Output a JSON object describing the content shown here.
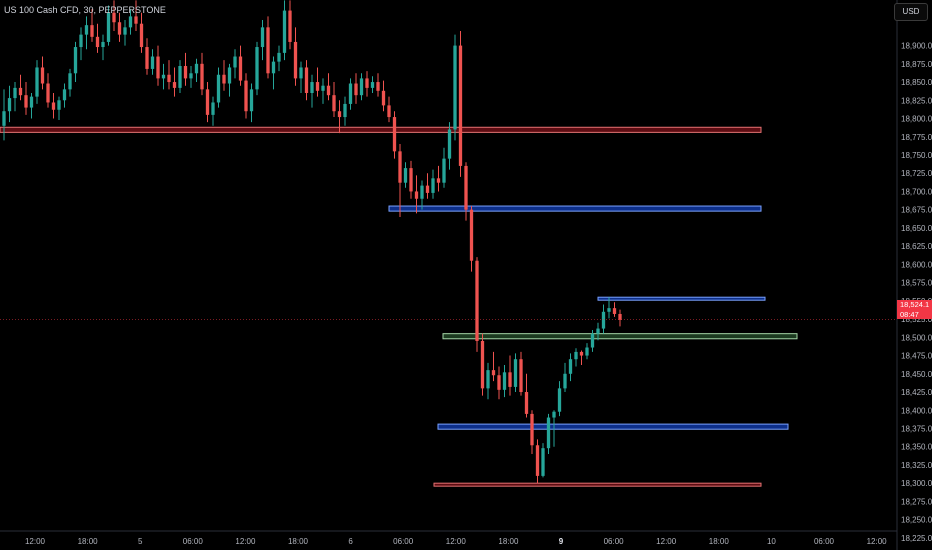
{
  "header": {
    "symbol_line": "US 100 Cash CFD, 30, PEPPERSTONE",
    "currency_button": "USD"
  },
  "last_price": {
    "value": "18,524.1",
    "countdown": "08:47"
  },
  "colors": {
    "up": "#26a69a",
    "down": "#ef5350",
    "zone_red": "#b22833",
    "zone_blue": "#2962ff",
    "zone_green": "#4caf50",
    "background": "#000000",
    "axis_text": "#b2b5be"
  },
  "chart_data": {
    "type": "candlestick",
    "title": "US 100 Cash CFD, 30, PEPPERSTONE",
    "ylim": [
      18212.5,
      18962.5
    ],
    "y_ticks": [
      "18,900.0",
      "18,875.0",
      "18,850.0",
      "18,825.0",
      "18,800.0",
      "18,775.0",
      "18,750.0",
      "18,725.0",
      "18,700.0",
      "18,675.0",
      "18,650.0",
      "18,625.0",
      "18,600.0",
      "18,575.0",
      "18,550.0",
      "18,525.0",
      "18,500.0",
      "18,475.0",
      "18,450.0",
      "18,425.0",
      "18,400.0",
      "18,375.0",
      "18,350.0",
      "18,325.0",
      "18,300.0",
      "18,275.0",
      "18,250.0",
      "18,225.0"
    ],
    "x_ticks": [
      "12:00",
      "18:00",
      "5",
      "06:00",
      "12:00",
      "18:00",
      "6",
      "06:00",
      "12:00",
      "18:00",
      "9",
      "06:00",
      "12:00",
      "18:00",
      "10",
      "06:00",
      "12:00"
    ],
    "x_ticks_bold": [
      10
    ],
    "zones": [
      {
        "color": "red",
        "low": 18781,
        "high": 18788
      },
      {
        "color": "blue",
        "low": 18673,
        "high": 18680
      },
      {
        "color": "blue",
        "low": 18551,
        "high": 18555
      },
      {
        "color": "green",
        "low": 18498,
        "high": 18505
      },
      {
        "color": "blue",
        "low": 18374,
        "high": 18381
      },
      {
        "color": "red",
        "low": 18296,
        "high": 18300
      }
    ],
    "last_price": 18524.1,
    "candles": [
      [
        18790,
        18840,
        18770,
        18810
      ],
      [
        18810,
        18845,
        18795,
        18828
      ],
      [
        18828,
        18850,
        18810,
        18842
      ],
      [
        18842,
        18860,
        18825,
        18832
      ],
      [
        18832,
        18850,
        18805,
        18815
      ],
      [
        18815,
        18835,
        18800,
        18830
      ],
      [
        18830,
        18880,
        18820,
        18870
      ],
      [
        18870,
        18885,
        18840,
        18848
      ],
      [
        18848,
        18862,
        18815,
        18822
      ],
      [
        18822,
        18835,
        18800,
        18812
      ],
      [
        18812,
        18830,
        18798,
        18825
      ],
      [
        18825,
        18848,
        18815,
        18840
      ],
      [
        18840,
        18868,
        18830,
        18862
      ],
      [
        18862,
        18905,
        18850,
        18898
      ],
      [
        18898,
        18925,
        18880,
        18915
      ],
      [
        18915,
        18940,
        18895,
        18928
      ],
      [
        18928,
        18950,
        18905,
        18912
      ],
      [
        18912,
        18930,
        18890,
        18898
      ],
      [
        18898,
        18915,
        18880,
        18905
      ],
      [
        18905,
        18955,
        18900,
        18945
      ],
      [
        18945,
        18962,
        18920,
        18932
      ],
      [
        18932,
        18945,
        18905,
        18915
      ],
      [
        18915,
        18935,
        18900,
        18925
      ],
      [
        18925,
        18950,
        18915,
        18940
      ],
      [
        18940,
        18962,
        18920,
        18930
      ],
      [
        18930,
        18945,
        18890,
        18898
      ],
      [
        18898,
        18910,
        18860,
        18868
      ],
      [
        18868,
        18895,
        18860,
        18885
      ],
      [
        18885,
        18900,
        18845,
        18855
      ],
      [
        18855,
        18875,
        18840,
        18860
      ],
      [
        18860,
        18880,
        18840,
        18850
      ],
      [
        18850,
        18870,
        18830,
        18842
      ],
      [
        18842,
        18880,
        18835,
        18872
      ],
      [
        18872,
        18890,
        18845,
        18855
      ],
      [
        18855,
        18872,
        18842,
        18862
      ],
      [
        18862,
        18882,
        18850,
        18875
      ],
      [
        18875,
        18890,
        18832,
        18840
      ],
      [
        18840,
        18850,
        18795,
        18805
      ],
      [
        18805,
        18830,
        18790,
        18822
      ],
      [
        18822,
        18870,
        18815,
        18860
      ],
      [
        18860,
        18880,
        18838,
        18848
      ],
      [
        18848,
        18875,
        18830,
        18870
      ],
      [
        18870,
        18895,
        18855,
        18885
      ],
      [
        18885,
        18900,
        18845,
        18852
      ],
      [
        18852,
        18862,
        18800,
        18810
      ],
      [
        18810,
        18848,
        18795,
        18840
      ],
      [
        18840,
        18905,
        18832,
        18898
      ],
      [
        18898,
        18935,
        18880,
        18925
      ],
      [
        18925,
        18940,
        18855,
        18862
      ],
      [
        18862,
        18885,
        18840,
        18878
      ],
      [
        18878,
        18900,
        18865,
        18890
      ],
      [
        18890,
        18962,
        18880,
        18948
      ],
      [
        18948,
        18962,
        18895,
        18905
      ],
      [
        18905,
        18925,
        18845,
        18855
      ],
      [
        18855,
        18878,
        18835,
        18870
      ],
      [
        18870,
        18880,
        18825,
        18835
      ],
      [
        18835,
        18860,
        18815,
        18850
      ],
      [
        18850,
        18870,
        18830,
        18838
      ],
      [
        18838,
        18855,
        18820,
        18845
      ],
      [
        18845,
        18862,
        18825,
        18832
      ],
      [
        18832,
        18850,
        18802,
        18810
      ],
      [
        18810,
        18825,
        18780,
        18802
      ],
      [
        18802,
        18830,
        18790,
        18820
      ],
      [
        18820,
        18855,
        18812,
        18848
      ],
      [
        18848,
        18862,
        18820,
        18832
      ],
      [
        18832,
        18862,
        18825,
        18855
      ],
      [
        18855,
        18865,
        18830,
        18842
      ],
      [
        18842,
        18858,
        18835,
        18850
      ],
      [
        18850,
        18862,
        18830,
        18838
      ],
      [
        18838,
        18852,
        18810,
        18818
      ],
      [
        18818,
        18830,
        18795,
        18802
      ],
      [
        18802,
        18810,
        18745,
        18755
      ],
      [
        18755,
        18765,
        18665,
        18712
      ],
      [
        18712,
        18740,
        18705,
        18732
      ],
      [
        18732,
        18742,
        18690,
        18700
      ],
      [
        18700,
        18722,
        18670,
        18690
      ],
      [
        18690,
        18715,
        18675,
        18708
      ],
      [
        18708,
        18725,
        18690,
        18698
      ],
      [
        18698,
        18730,
        18690,
        18718
      ],
      [
        18718,
        18735,
        18700,
        18712
      ],
      [
        18712,
        18760,
        18705,
        18745
      ],
      [
        18745,
        18795,
        18730,
        18785
      ],
      [
        18785,
        18915,
        18770,
        18900
      ],
      [
        18900,
        18920,
        18720,
        18735
      ],
      [
        18735,
        18740,
        18660,
        18675
      ],
      [
        18675,
        18680,
        18590,
        18605
      ],
      [
        18605,
        18610,
        18480,
        18495
      ],
      [
        18495,
        18505,
        18420,
        18430
      ],
      [
        18430,
        18465,
        18415,
        18455
      ],
      [
        18455,
        18480,
        18440,
        18448
      ],
      [
        18448,
        18460,
        18415,
        18428
      ],
      [
        18428,
        18462,
        18418,
        18452
      ],
      [
        18452,
        18475,
        18420,
        18432
      ],
      [
        18432,
        18478,
        18425,
        18470
      ],
      [
        18470,
        18480,
        18420,
        18425
      ],
      [
        18425,
        18450,
        18390,
        18395
      ],
      [
        18395,
        18400,
        18340,
        18352
      ],
      [
        18352,
        18360,
        18300,
        18310
      ],
      [
        18310,
        18355,
        18308,
        18348
      ],
      [
        18348,
        18395,
        18340,
        18390
      ],
      [
        18390,
        18400,
        18350,
        18398
      ],
      [
        18398,
        18440,
        18392,
        18430
      ],
      [
        18430,
        18465,
        18425,
        18450
      ],
      [
        18450,
        18478,
        18440,
        18470
      ],
      [
        18470,
        18485,
        18460,
        18480
      ],
      [
        18480,
        18482,
        18462,
        18475
      ],
      [
        18475,
        18492,
        18470,
        18486
      ],
      [
        18486,
        18510,
        18480,
        18505
      ],
      [
        18505,
        18520,
        18496,
        18512
      ],
      [
        18512,
        18545,
        18505,
        18535
      ],
      [
        18535,
        18555,
        18526,
        18540
      ],
      [
        18540,
        18548,
        18528,
        18532
      ],
      [
        18532,
        18538,
        18515,
        18524
      ]
    ]
  }
}
